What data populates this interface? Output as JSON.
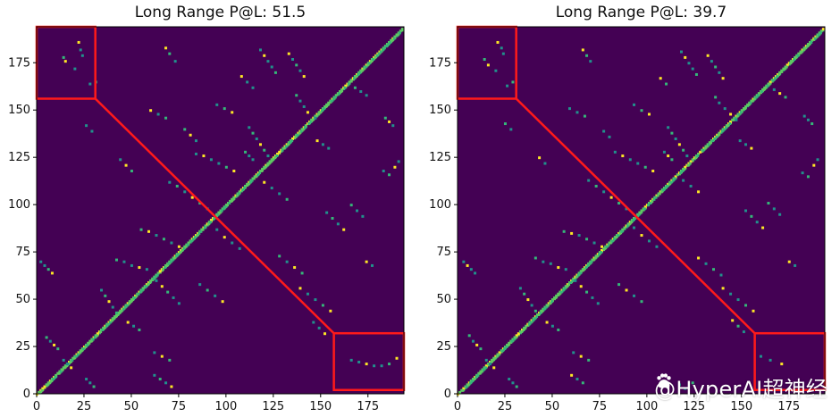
{
  "colors": {
    "background": "#440154",
    "diagonal_high": "#fde725",
    "diagonal_mid": "#5ec962",
    "contact_low": "#21918c",
    "contact_mid": "#35b779",
    "highlight_box": "#ff1a1a",
    "axis": "#000000"
  },
  "watermark": {
    "text": "@HyperAI超神经",
    "icon": "paw-icon"
  },
  "chart_data": [
    {
      "type": "heatmap",
      "title": "Long Range P@L: 51.5",
      "xlim": [
        0,
        194
      ],
      "ylim": [
        0,
        194
      ],
      "x_ticks": [
        0,
        25,
        50,
        75,
        100,
        125,
        150,
        175
      ],
      "y_ticks": [
        0,
        25,
        50,
        75,
        100,
        125,
        150,
        175
      ],
      "highlight_boxes": [
        {
          "x": [
            0,
            31
          ],
          "y": [
            156,
            194
          ]
        },
        {
          "x": [
            157,
            194
          ],
          "y": [
            2,
            32
          ]
        }
      ],
      "connector": {
        "from": [
          31,
          156
        ],
        "to": [
          157,
          32
        ]
      },
      "off_diagonal_contacts": [
        [
          22,
          186
        ],
        [
          23,
          182
        ],
        [
          24,
          179
        ],
        [
          14,
          178
        ],
        [
          15,
          176
        ],
        [
          20,
          172
        ],
        [
          31,
          165
        ],
        [
          28,
          164
        ],
        [
          68,
          183
        ],
        [
          70,
          180
        ],
        [
          73,
          176
        ],
        [
          118,
          182
        ],
        [
          120,
          179
        ],
        [
          122,
          176
        ],
        [
          124,
          173
        ],
        [
          126,
          170
        ],
        [
          133,
          180
        ],
        [
          135,
          177
        ],
        [
          137,
          174
        ],
        [
          139,
          171
        ],
        [
          141,
          168
        ],
        [
          137,
          158
        ],
        [
          139,
          155
        ],
        [
          141,
          152
        ],
        [
          143,
          149
        ],
        [
          147,
          146
        ],
        [
          95,
          153
        ],
        [
          99,
          151
        ],
        [
          103,
          149
        ],
        [
          112,
          141
        ],
        [
          114,
          138
        ],
        [
          116,
          135
        ],
        [
          118,
          132
        ],
        [
          120,
          129
        ],
        [
          122,
          126
        ],
        [
          84,
          127
        ],
        [
          88,
          126
        ],
        [
          92,
          124
        ],
        [
          96,
          122
        ],
        [
          100,
          120
        ],
        [
          104,
          118
        ],
        [
          70,
          112
        ],
        [
          74,
          110
        ],
        [
          78,
          107
        ],
        [
          82,
          104
        ],
        [
          86,
          101
        ],
        [
          90,
          98
        ],
        [
          95,
          87
        ],
        [
          99,
          83
        ],
        [
          103,
          80
        ],
        [
          107,
          77
        ],
        [
          55,
          87
        ],
        [
          59,
          86
        ],
        [
          63,
          84
        ],
        [
          67,
          82
        ],
        [
          71,
          80
        ],
        [
          75,
          78
        ],
        [
          42,
          71
        ],
        [
          46,
          70
        ],
        [
          50,
          68
        ],
        [
          54,
          67
        ],
        [
          58,
          66
        ],
        [
          34,
          55
        ],
        [
          36,
          52
        ],
        [
          38,
          49
        ],
        [
          40,
          46
        ],
        [
          42,
          43
        ],
        [
          63,
          60
        ],
        [
          66,
          57
        ],
        [
          69,
          54
        ],
        [
          72,
          51
        ],
        [
          75,
          48
        ],
        [
          139,
          56
        ],
        [
          143,
          53
        ],
        [
          147,
          50
        ],
        [
          151,
          47
        ],
        [
          155,
          44
        ],
        [
          153,
          96
        ],
        [
          156,
          93
        ],
        [
          159,
          90
        ],
        [
          162,
          87
        ],
        [
          166,
          100
        ],
        [
          169,
          97
        ],
        [
          172,
          94
        ],
        [
          174,
          70
        ],
        [
          177,
          68
        ],
        [
          183,
          118
        ],
        [
          186,
          116
        ],
        [
          189,
          120
        ],
        [
          191,
          123
        ],
        [
          5,
          30
        ],
        [
          7,
          28
        ],
        [
          9,
          26
        ],
        [
          11,
          24
        ],
        [
          14,
          18
        ],
        [
          16,
          16
        ],
        [
          18,
          14
        ],
        [
          26,
          8
        ],
        [
          28,
          6
        ],
        [
          30,
          4
        ],
        [
          48,
          38
        ],
        [
          51,
          36
        ],
        [
          54,
          34
        ],
        [
          62,
          22
        ],
        [
          66,
          20
        ],
        [
          70,
          18
        ],
        [
          166,
          18
        ],
        [
          170,
          17
        ],
        [
          174,
          16
        ],
        [
          178,
          15
        ],
        [
          182,
          15
        ],
        [
          186,
          16
        ],
        [
          190,
          19
        ],
        [
          62,
          10
        ],
        [
          65,
          8
        ],
        [
          68,
          6
        ],
        [
          71,
          4
        ],
        [
          110,
          128
        ],
        [
          112,
          126
        ],
        [
          114,
          124
        ],
        [
          148,
          134
        ],
        [
          151,
          132
        ],
        [
          154,
          130
        ],
        [
          184,
          146
        ],
        [
          186,
          144
        ],
        [
          188,
          142
        ],
        [
          128,
          73
        ],
        [
          132,
          70
        ],
        [
          136,
          67
        ],
        [
          140,
          64
        ],
        [
          146,
          38
        ],
        [
          149,
          35
        ],
        [
          152,
          32
        ],
        [
          2,
          70
        ],
        [
          4,
          68
        ],
        [
          6,
          66
        ],
        [
          8,
          64
        ],
        [
          86,
          58
        ],
        [
          90,
          55
        ],
        [
          94,
          52
        ],
        [
          98,
          49
        ],
        [
          168,
          162
        ],
        [
          171,
          160
        ],
        [
          174,
          158
        ],
        [
          120,
          112
        ],
        [
          124,
          109
        ],
        [
          128,
          106
        ],
        [
          132,
          103
        ],
        [
          60,
          150
        ],
        [
          64,
          148
        ],
        [
          68,
          146
        ],
        [
          44,
          124
        ],
        [
          47,
          121
        ],
        [
          50,
          118
        ],
        [
          26,
          142
        ],
        [
          29,
          139
        ],
        [
          108,
          168
        ],
        [
          111,
          165
        ],
        [
          114,
          162
        ],
        [
          78,
          140
        ],
        [
          81,
          137
        ],
        [
          84,
          134
        ]
      ]
    },
    {
      "type": "heatmap",
      "title": "Long Range P@L: 39.7",
      "xlim": [
        0,
        194
      ],
      "ylim": [
        0,
        194
      ],
      "x_ticks": [
        0,
        25,
        50,
        75,
        100,
        125,
        150,
        175
      ],
      "y_ticks": [
        0,
        25,
        50,
        75,
        100,
        125,
        150,
        175
      ],
      "highlight_boxes": [
        {
          "x": [
            0,
            31
          ],
          "y": [
            156,
            194
          ]
        },
        {
          "x": [
            157,
            194
          ],
          "y": [
            2,
            32
          ]
        }
      ],
      "connector": {
        "from": [
          31,
          156
        ],
        "to": [
          157,
          32
        ]
      },
      "off_diagonal_contacts": [
        [
          21,
          186
        ],
        [
          23,
          183
        ],
        [
          24,
          180
        ],
        [
          14,
          177
        ],
        [
          16,
          174
        ],
        [
          20,
          171
        ],
        [
          29,
          165
        ],
        [
          26,
          163
        ],
        [
          66,
          182
        ],
        [
          68,
          179
        ],
        [
          70,
          176
        ],
        [
          118,
          181
        ],
        [
          120,
          178
        ],
        [
          122,
          175
        ],
        [
          124,
          172
        ],
        [
          126,
          169
        ],
        [
          132,
          179
        ],
        [
          134,
          176
        ],
        [
          136,
          173
        ],
        [
          138,
          170
        ],
        [
          140,
          167
        ],
        [
          136,
          157
        ],
        [
          138,
          154
        ],
        [
          141,
          151
        ],
        [
          144,
          148
        ],
        [
          147,
          145
        ],
        [
          93,
          153
        ],
        [
          97,
          150
        ],
        [
          101,
          148
        ],
        [
          111,
          141
        ],
        [
          113,
          138
        ],
        [
          115,
          135
        ],
        [
          117,
          132
        ],
        [
          119,
          129
        ],
        [
          121,
          126
        ],
        [
          83,
          128
        ],
        [
          87,
          126
        ],
        [
          91,
          124
        ],
        [
          95,
          122
        ],
        [
          99,
          120
        ],
        [
          103,
          118
        ],
        [
          69,
          113
        ],
        [
          73,
          110
        ],
        [
          77,
          107
        ],
        [
          81,
          104
        ],
        [
          85,
          101
        ],
        [
          89,
          98
        ],
        [
          93,
          88
        ],
        [
          97,
          84
        ],
        [
          101,
          81
        ],
        [
          105,
          78
        ],
        [
          56,
          86
        ],
        [
          60,
          85
        ],
        [
          64,
          84
        ],
        [
          68,
          82
        ],
        [
          72,
          80
        ],
        [
          76,
          78
        ],
        [
          41,
          72
        ],
        [
          45,
          70
        ],
        [
          49,
          69
        ],
        [
          53,
          67
        ],
        [
          57,
          66
        ],
        [
          33,
          56
        ],
        [
          35,
          53
        ],
        [
          37,
          50
        ],
        [
          39,
          47
        ],
        [
          41,
          44
        ],
        [
          62,
          60
        ],
        [
          65,
          57
        ],
        [
          68,
          54
        ],
        [
          71,
          51
        ],
        [
          74,
          48
        ],
        [
          140,
          56
        ],
        [
          144,
          53
        ],
        [
          148,
          50
        ],
        [
          152,
          47
        ],
        [
          156,
          44
        ],
        [
          152,
          97
        ],
        [
          155,
          94
        ],
        [
          158,
          91
        ],
        [
          161,
          88
        ],
        [
          164,
          101
        ],
        [
          167,
          98
        ],
        [
          170,
          95
        ],
        [
          175,
          70
        ],
        [
          178,
          68
        ],
        [
          182,
          117
        ],
        [
          185,
          115
        ],
        [
          188,
          121
        ],
        [
          190,
          124
        ],
        [
          6,
          31
        ],
        [
          8,
          28
        ],
        [
          10,
          26
        ],
        [
          12,
          24
        ],
        [
          15,
          18
        ],
        [
          17,
          16
        ],
        [
          19,
          14
        ],
        [
          27,
          8
        ],
        [
          29,
          6
        ],
        [
          31,
          4
        ],
        [
          47,
          38
        ],
        [
          50,
          36
        ],
        [
          53,
          34
        ],
        [
          61,
          22
        ],
        [
          65,
          20
        ],
        [
          69,
          18
        ],
        [
          160,
          20
        ],
        [
          165,
          18
        ],
        [
          171,
          16
        ],
        [
          117,
          5
        ],
        [
          120,
          3
        ],
        [
          124,
          6
        ],
        [
          60,
          10
        ],
        [
          63,
          8
        ],
        [
          66,
          6
        ],
        [
          109,
          128
        ],
        [
          111,
          126
        ],
        [
          113,
          124
        ],
        [
          149,
          134
        ],
        [
          152,
          132
        ],
        [
          155,
          130
        ],
        [
          183,
          147
        ],
        [
          185,
          145
        ],
        [
          187,
          143
        ],
        [
          127,
          72
        ],
        [
          131,
          69
        ],
        [
          135,
          66
        ],
        [
          139,
          63
        ],
        [
          145,
          39
        ],
        [
          148,
          36
        ],
        [
          151,
          33
        ],
        [
          3,
          70
        ],
        [
          5,
          68
        ],
        [
          7,
          66
        ],
        [
          9,
          64
        ],
        [
          85,
          58
        ],
        [
          89,
          55
        ],
        [
          93,
          52
        ],
        [
          97,
          49
        ],
        [
          167,
          161
        ],
        [
          170,
          159
        ],
        [
          173,
          157
        ],
        [
          119,
          113
        ],
        [
          123,
          110
        ],
        [
          127,
          107
        ],
        [
          59,
          151
        ],
        [
          63,
          149
        ],
        [
          67,
          147
        ],
        [
          43,
          125
        ],
        [
          46,
          122
        ],
        [
          25,
          143
        ],
        [
          28,
          140
        ],
        [
          107,
          167
        ],
        [
          110,
          164
        ],
        [
          77,
          139
        ],
        [
          80,
          136
        ]
      ]
    }
  ]
}
